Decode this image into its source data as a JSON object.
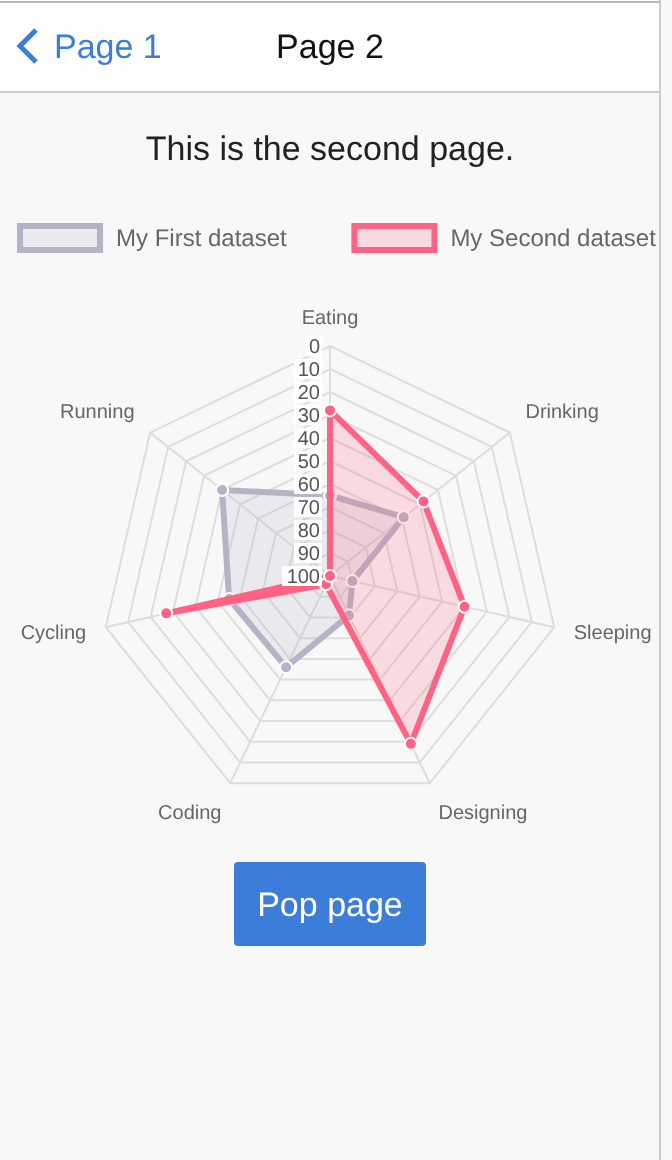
{
  "chart_data": {
    "type": "radar",
    "title": "This is the second page.",
    "annotations": [
      "Page 1",
      "Page 2",
      "Pop page"
    ],
    "categories": [
      "Eating",
      "Drinking",
      "Sleeping",
      "Designing",
      "Coding",
      "Cycling",
      "Running"
    ],
    "series": [
      {
        "name": "My First dataset",
        "color": "#b3b5c6",
        "values": [
          65,
          59,
          90,
          81,
          56,
          55,
          40
        ]
      },
      {
        "name": "My Second dataset",
        "color": "#ff6384",
        "values": [
          28,
          48,
          40,
          19,
          96,
          27,
          100
        ]
      }
    ],
    "ylim": [
      100,
      0
    ],
    "yticks": [
      0,
      10,
      20,
      30,
      40,
      50,
      60,
      70,
      80,
      90,
      100
    ],
    "grid": true,
    "legend": "top",
    "marker": "circle"
  }
}
